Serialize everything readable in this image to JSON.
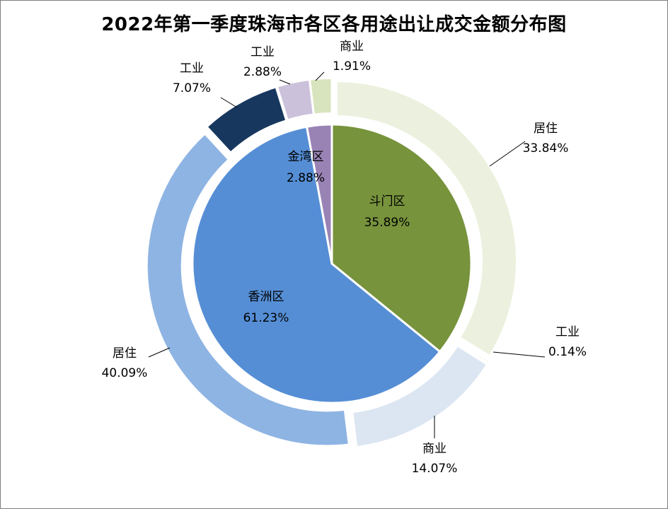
{
  "chart_data": {
    "type": "pie",
    "title": "2022年第一季度珠海市各区各用途出让成交金额分布图",
    "inner": {
      "series": [
        {
          "name": "斗门区",
          "value": 35.89,
          "label": "35.89%",
          "color": "#77933c"
        },
        {
          "name": "香洲区",
          "value": 61.23,
          "label": "61.23%",
          "color": "#558ed5"
        },
        {
          "name": "金湾区",
          "value": 2.88,
          "label": "2.88%",
          "color": "#9983b5"
        }
      ]
    },
    "outer": {
      "series": [
        {
          "name": "居住",
          "value": 33.84,
          "label": "33.84%",
          "color": "#ebf1de"
        },
        {
          "name": "工业",
          "value": 0.14,
          "label": "0.14%",
          "color": "#c4d79b"
        },
        {
          "name": "商业",
          "value": 14.07,
          "label": "14.07%",
          "color": "#dce6f2"
        },
        {
          "name": "居住",
          "value": 40.09,
          "label": "40.09%",
          "color": "#8eb4e3"
        },
        {
          "name": "工业",
          "value": 7.07,
          "label": "7.07%",
          "color": "#17375e"
        },
        {
          "name": "工业",
          "value": 2.88,
          "label": "2.88%",
          "color": "#ccc1da"
        },
        {
          "name": "商业",
          "value": 1.91,
          "label": "1.91%",
          "color": "#d7e4bd"
        }
      ]
    }
  }
}
